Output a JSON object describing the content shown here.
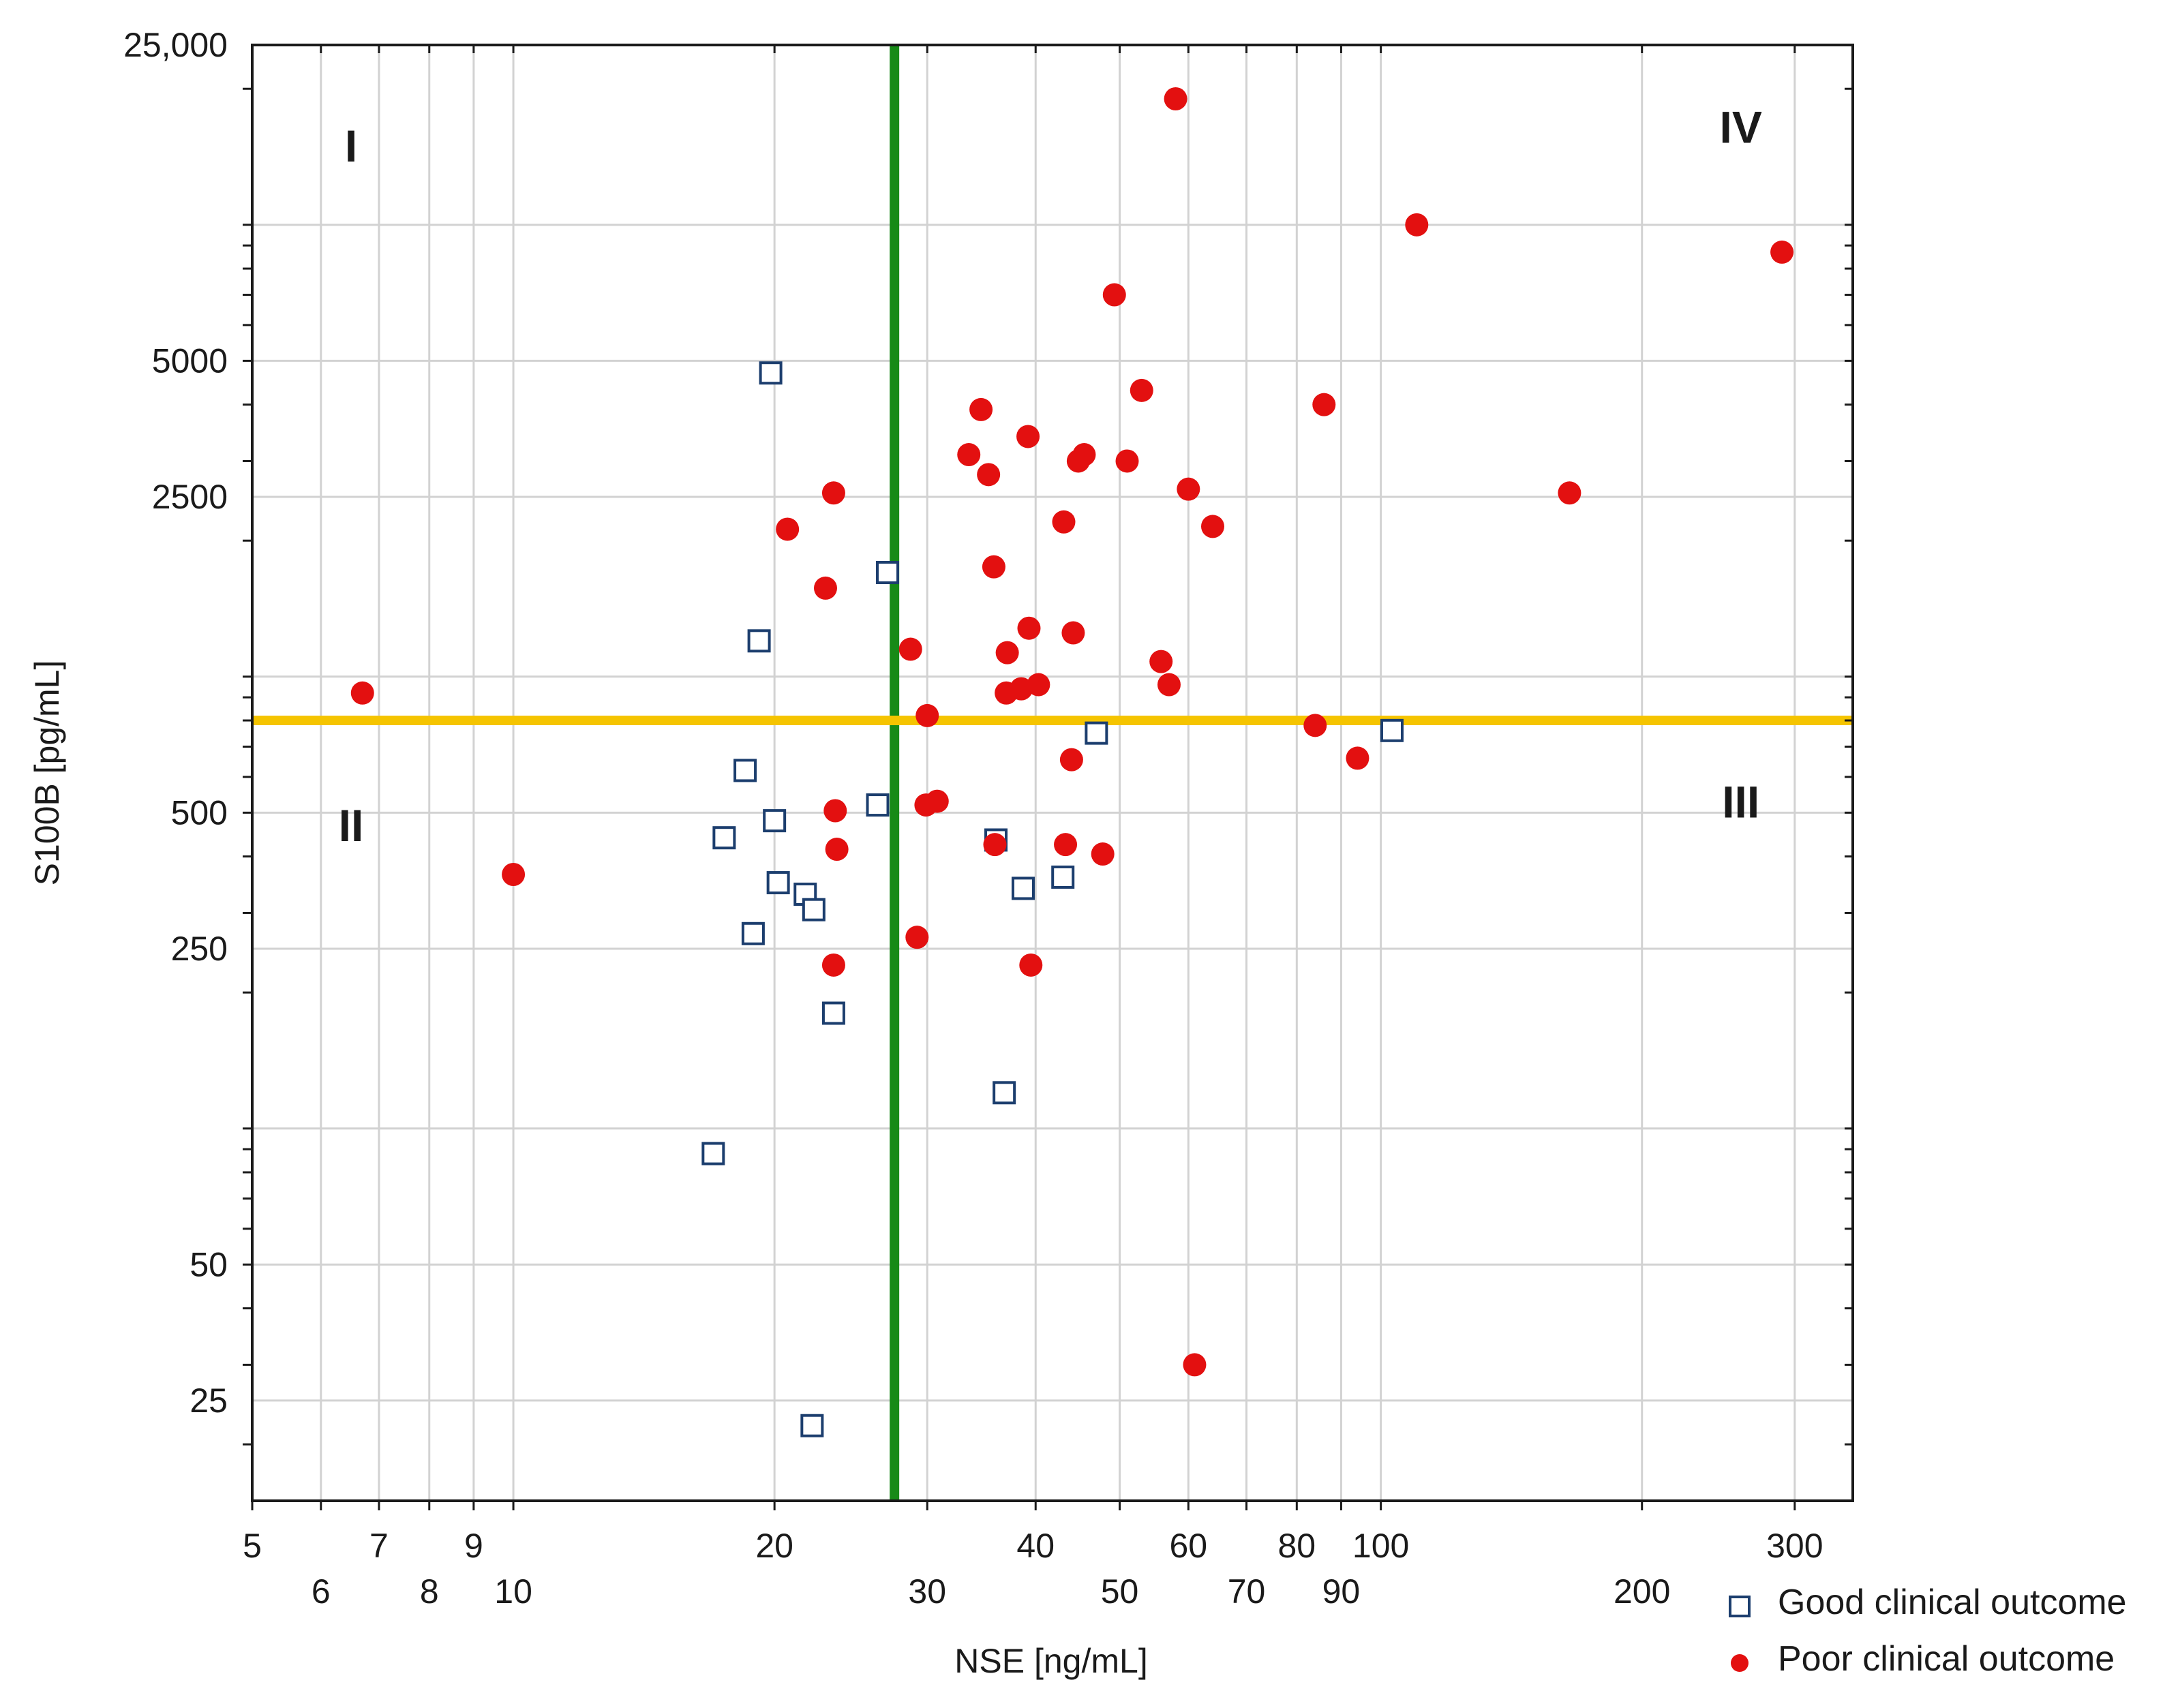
{
  "chart_data": {
    "type": "scatter",
    "xscale": "log",
    "yscale": "log",
    "xlabel": "NSE [ng/mL]",
    "ylabel": "S100B [pg/mL]",
    "xlim": [
      5,
      350
    ],
    "ylim": [
      15,
      25000
    ],
    "x_ticks_row1": [
      {
        "value": 5,
        "label": "5"
      },
      {
        "value": 7,
        "label": "7"
      },
      {
        "value": 9,
        "label": "9"
      },
      {
        "value": 20,
        "label": "20"
      },
      {
        "value": 40,
        "label": "40"
      },
      {
        "value": 60,
        "label": "60"
      },
      {
        "value": 80,
        "label": "80"
      },
      {
        "value": 100,
        "label": "100"
      },
      {
        "value": 300,
        "label": "300"
      }
    ],
    "x_ticks_row2": [
      {
        "value": 6,
        "label": "6"
      },
      {
        "value": 8,
        "label": "8"
      },
      {
        "value": 10,
        "label": "10"
      },
      {
        "value": 30,
        "label": "30"
      },
      {
        "value": 50,
        "label": "50"
      },
      {
        "value": 70,
        "label": "70"
      },
      {
        "value": 90,
        "label": "90"
      },
      {
        "value": 200,
        "label": "200"
      }
    ],
    "x_gridlines": [
      6,
      7,
      8,
      9,
      10,
      20,
      30,
      40,
      50,
      60,
      70,
      80,
      90,
      100,
      200,
      300
    ],
    "y_ticks": [
      {
        "value": 25,
        "label": "25"
      },
      {
        "value": 50,
        "label": "50"
      },
      {
        "value": 250,
        "label": "250"
      },
      {
        "value": 500,
        "label": "500"
      },
      {
        "value": 2500,
        "label": "2500"
      },
      {
        "value": 5000,
        "label": "5000"
      },
      {
        "value": 25000,
        "label": "25,000"
      }
    ],
    "y_gridlines": [
      25,
      50,
      100,
      250,
      500,
      1000,
      2500,
      5000,
      10000
    ],
    "cutoffs": [
      {
        "axis": "x",
        "value": 27.5,
        "color": "#178a17"
      },
      {
        "axis": "y",
        "value": 800,
        "color": "#f5c400"
      }
    ],
    "quadrant_labels": [
      {
        "text": "I",
        "x": 6.5,
        "y": 15000
      },
      {
        "text": "II",
        "x": 6.5,
        "y": 470
      },
      {
        "text": "III",
        "x": 260,
        "y": 530
      },
      {
        "text": "IV",
        "x": 260,
        "y": 16500
      }
    ],
    "series": [
      {
        "name": "Good clinical outcome",
        "marker": "square",
        "color": "#1c3e6e",
        "points": [
          [
            19.8,
            4700
          ],
          [
            27.0,
            1700
          ],
          [
            19.2,
            1200
          ],
          [
            18.5,
            620
          ],
          [
            17.5,
            440
          ],
          [
            20.0,
            480
          ],
          [
            20.2,
            350
          ],
          [
            21.7,
            330
          ],
          [
            22.2,
            305
          ],
          [
            18.9,
            270
          ],
          [
            26.3,
            520
          ],
          [
            23.4,
            180
          ],
          [
            36.0,
            435
          ],
          [
            38.7,
            340
          ],
          [
            43.0,
            360
          ],
          [
            47.0,
            750
          ],
          [
            103.0,
            760
          ],
          [
            36.8,
            120
          ],
          [
            17.0,
            88
          ],
          [
            22.1,
            22
          ]
        ]
      },
      {
        "name": "Poor clinical outcome",
        "marker": "circle",
        "color": "#e31010",
        "points": [
          [
            6.7,
            920
          ],
          [
            10.0,
            365
          ],
          [
            20.7,
            2120
          ],
          [
            22.9,
            1570
          ],
          [
            23.4,
            2550
          ],
          [
            23.5,
            505
          ],
          [
            23.6,
            415
          ],
          [
            23.4,
            230
          ],
          [
            28.7,
            1150
          ],
          [
            29.2,
            265
          ],
          [
            30.0,
            820
          ],
          [
            29.9,
            520
          ],
          [
            30.8,
            530
          ],
          [
            33.5,
            3100
          ],
          [
            34.6,
            3900
          ],
          [
            35.3,
            2800
          ],
          [
            35.8,
            1750
          ],
          [
            35.9,
            425
          ],
          [
            37.0,
            920
          ],
          [
            37.1,
            1130
          ],
          [
            38.5,
            940
          ],
          [
            39.2,
            3400
          ],
          [
            39.3,
            1280
          ],
          [
            39.5,
            230
          ],
          [
            40.3,
            960
          ],
          [
            43.1,
            2200
          ],
          [
            43.3,
            425
          ],
          [
            44.0,
            655
          ],
          [
            44.2,
            1250
          ],
          [
            44.8,
            3000
          ],
          [
            45.5,
            3100
          ],
          [
            47.8,
            405
          ],
          [
            49.3,
            7000
          ],
          [
            51.0,
            3000
          ],
          [
            53.0,
            4300
          ],
          [
            55.8,
            1080
          ],
          [
            57.0,
            960
          ],
          [
            58.0,
            19000
          ],
          [
            60.0,
            2600
          ],
          [
            61.0,
            30
          ],
          [
            64.0,
            2150
          ],
          [
            84.0,
            780
          ],
          [
            86.0,
            4000
          ],
          [
            94.0,
            660
          ],
          [
            110.0,
            10000
          ],
          [
            165.0,
            2550
          ],
          [
            290.0,
            8700
          ]
        ]
      }
    ]
  }
}
